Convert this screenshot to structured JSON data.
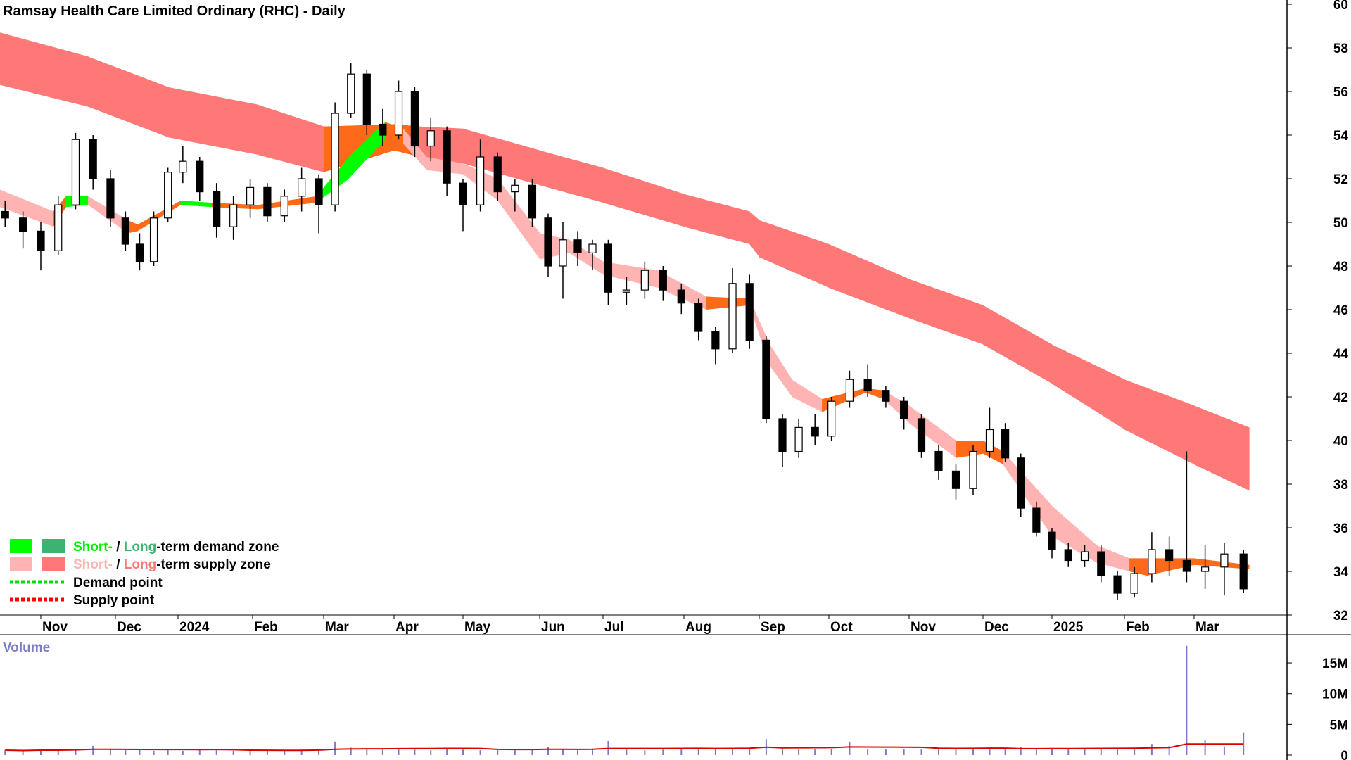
{
  "title": "Ramsay Health Care Limited Ordinary (RHC) - Daily",
  "colors": {
    "short_demand": "#00ff00",
    "long_demand": "#3cb371",
    "short_supply": "#ffb3b3",
    "long_supply": "#ff7878",
    "in_zone": "#ff6a1a",
    "demand_point": "#00dd00",
    "supply_point": "#ff0000",
    "volume_bar": "#7b7bc8",
    "volume_ma": "#dd0000"
  },
  "legend": {
    "demand": {
      "short": "Short-",
      "sep": " / ",
      "long": "Long",
      "rest": "-term demand zone"
    },
    "supply": {
      "short": "Short-",
      "sep": " / ",
      "long": "Long",
      "rest": "-term supply zone"
    },
    "demand_point": "Demand point",
    "supply_point": "Supply point"
  },
  "chart_data": [
    {
      "type": "candlestick",
      "title": "Ramsay Health Care Limited Ordinary (RHC) - Daily",
      "ylim": [
        32,
        60
      ],
      "y_ticks": [
        "60",
        "58",
        "56",
        "54",
        "52",
        "50",
        "48",
        "46",
        "44",
        "42",
        "40",
        "38",
        "36",
        "34",
        "32"
      ],
      "x_ticks": [
        {
          "label": "Nov",
          "date": "2023-11-01"
        },
        {
          "label": "Dec",
          "date": "2023-12-01"
        },
        {
          "label": "2024",
          "date": "2024-01-01"
        },
        {
          "label": "Feb",
          "date": "2024-02-01"
        },
        {
          "label": "Mar",
          "date": "2024-03-01"
        },
        {
          "label": "Apr",
          "date": "2024-04-01"
        },
        {
          "label": "May",
          "date": "2024-05-01"
        },
        {
          "label": "Jun",
          "date": "2024-06-01"
        },
        {
          "label": "Jul",
          "date": "2024-07-01"
        },
        {
          "label": "Aug",
          "date": "2024-08-01"
        },
        {
          "label": "Sep",
          "date": "2024-09-01"
        },
        {
          "label": "Oct",
          "date": "2024-10-01"
        },
        {
          "label": "Nov",
          "date": "2024-11-01"
        },
        {
          "label": "Dec",
          "date": "2024-12-01"
        },
        {
          "label": "2025",
          "date": "2025-01-01"
        },
        {
          "label": "Feb",
          "date": "2025-02-01"
        },
        {
          "label": "Mar",
          "date": "2025-03-01"
        }
      ],
      "ohlc_columns": [
        "date",
        "open",
        "high",
        "low",
        "close"
      ],
      "ohlc": [
        [
          "2023-10-18",
          50.5,
          51.0,
          49.8,
          50.2
        ],
        [
          "2023-10-25",
          50.2,
          50.5,
          48.8,
          49.6
        ],
        [
          "2023-11-01",
          49.6,
          50.0,
          47.8,
          48.7
        ],
        [
          "2023-11-08",
          48.7,
          51.2,
          48.5,
          50.8
        ],
        [
          "2023-11-15",
          50.8,
          54.1,
          50.6,
          53.8
        ],
        [
          "2023-11-22",
          53.8,
          54.0,
          51.5,
          52.0
        ],
        [
          "2023-11-29",
          52.0,
          52.4,
          49.8,
          50.2
        ],
        [
          "2023-12-06",
          50.2,
          50.5,
          48.7,
          49.0
        ],
        [
          "2023-12-13",
          49.0,
          49.5,
          47.8,
          48.2
        ],
        [
          "2023-12-20",
          48.2,
          50.5,
          48.0,
          50.2
        ],
        [
          "2023-12-27",
          50.2,
          52.5,
          50.0,
          52.3
        ],
        [
          "2024-01-03",
          52.3,
          53.5,
          51.8,
          52.8
        ],
        [
          "2024-01-10",
          52.8,
          53.0,
          51.0,
          51.4
        ],
        [
          "2024-01-17",
          51.4,
          51.8,
          49.3,
          49.8
        ],
        [
          "2024-01-24",
          49.8,
          51.2,
          49.2,
          50.8
        ],
        [
          "2024-01-31",
          50.8,
          52.0,
          50.2,
          51.6
        ],
        [
          "2024-02-07",
          51.6,
          51.8,
          50.0,
          50.3
        ],
        [
          "2024-02-14",
          50.3,
          51.5,
          50.0,
          51.2
        ],
        [
          "2024-02-21",
          51.2,
          52.5,
          50.5,
          52.0
        ],
        [
          "2024-02-28",
          52.0,
          52.2,
          49.5,
          50.8
        ],
        [
          "2024-03-06",
          50.8,
          55.5,
          50.5,
          55.0
        ],
        [
          "2024-03-13",
          55.0,
          57.3,
          54.8,
          56.8
        ],
        [
          "2024-03-20",
          56.8,
          57.0,
          54.0,
          54.5
        ],
        [
          "2024-03-27",
          54.5,
          55.2,
          53.5,
          54.0
        ],
        [
          "2024-04-03",
          54.0,
          56.5,
          53.8,
          56.0
        ],
        [
          "2024-04-10",
          56.0,
          56.2,
          53.0,
          53.5
        ],
        [
          "2024-04-17",
          53.5,
          54.8,
          52.8,
          54.2
        ],
        [
          "2024-04-24",
          54.2,
          54.4,
          51.2,
          51.8
        ],
        [
          "2024-05-01",
          51.8,
          52.0,
          49.6,
          50.8
        ],
        [
          "2024-05-08",
          50.8,
          53.8,
          50.5,
          53.0
        ],
        [
          "2024-05-15",
          53.0,
          53.2,
          51.0,
          51.4
        ],
        [
          "2024-05-22",
          51.4,
          52.0,
          50.5,
          51.7
        ],
        [
          "2024-05-29",
          51.7,
          52.0,
          49.8,
          50.2
        ],
        [
          "2024-06-05",
          50.2,
          50.4,
          47.5,
          48.0
        ],
        [
          "2024-06-12",
          48.0,
          50.0,
          46.5,
          49.2
        ],
        [
          "2024-06-19",
          49.2,
          49.6,
          48.0,
          48.6
        ],
        [
          "2024-06-26",
          48.6,
          49.2,
          47.8,
          49.0
        ],
        [
          "2024-07-03",
          49.0,
          49.2,
          46.2,
          46.8
        ],
        [
          "2024-07-10",
          46.8,
          47.5,
          46.2,
          46.9
        ],
        [
          "2024-07-17",
          46.9,
          48.2,
          46.5,
          47.8
        ],
        [
          "2024-07-24",
          47.8,
          48.0,
          46.4,
          46.9
        ],
        [
          "2024-07-31",
          46.9,
          47.2,
          45.8,
          46.3
        ],
        [
          "2024-08-07",
          46.3,
          46.5,
          44.6,
          45.0
        ],
        [
          "2024-08-14",
          45.0,
          45.2,
          43.5,
          44.2
        ],
        [
          "2024-08-21",
          44.2,
          47.9,
          44.0,
          47.2
        ],
        [
          "2024-08-28",
          47.2,
          47.6,
          44.2,
          44.6
        ],
        [
          "2024-09-04",
          44.6,
          44.8,
          40.8,
          41.0
        ],
        [
          "2024-09-11",
          41.0,
          41.2,
          38.8,
          39.5
        ],
        [
          "2024-09-18",
          39.5,
          41.0,
          39.2,
          40.6
        ],
        [
          "2024-09-25",
          40.6,
          41.2,
          39.8,
          40.2
        ],
        [
          "2024-10-02",
          40.2,
          42.0,
          40.0,
          41.8
        ],
        [
          "2024-10-09",
          41.8,
          43.2,
          41.5,
          42.8
        ],
        [
          "2024-10-16",
          42.8,
          43.5,
          42.0,
          42.3
        ],
        [
          "2024-10-23",
          42.3,
          42.5,
          41.5,
          41.8
        ],
        [
          "2024-10-30",
          41.8,
          42.0,
          40.5,
          41.0
        ],
        [
          "2024-11-06",
          41.0,
          41.2,
          39.2,
          39.5
        ],
        [
          "2024-11-13",
          39.5,
          39.8,
          38.2,
          38.6
        ],
        [
          "2024-11-20",
          38.6,
          38.9,
          37.3,
          37.8
        ],
        [
          "2024-11-27",
          37.8,
          39.8,
          37.5,
          39.5
        ],
        [
          "2024-12-04",
          39.5,
          41.5,
          39.2,
          40.5
        ],
        [
          "2024-12-11",
          40.5,
          40.8,
          39.0,
          39.2
        ],
        [
          "2024-12-18",
          39.2,
          39.4,
          36.5,
          36.9
        ],
        [
          "2024-12-25",
          36.9,
          37.2,
          35.6,
          35.8
        ],
        [
          "2025-01-01",
          35.8,
          36.0,
          34.6,
          35.0
        ],
        [
          "2025-01-08",
          35.0,
          35.3,
          34.2,
          34.5
        ],
        [
          "2025-01-15",
          34.5,
          35.2,
          34.2,
          34.9
        ],
        [
          "2025-01-22",
          34.9,
          35.2,
          33.5,
          33.8
        ],
        [
          "2025-01-29",
          33.8,
          34.0,
          32.7,
          33.0
        ],
        [
          "2025-02-05",
          33.0,
          34.2,
          32.8,
          33.9
        ],
        [
          "2025-02-12",
          33.9,
          35.8,
          33.5,
          35.0
        ],
        [
          "2025-02-19",
          35.0,
          35.6,
          33.8,
          34.5
        ],
        [
          "2025-02-26",
          34.5,
          39.5,
          33.5,
          34.0
        ],
        [
          "2025-03-05",
          34.0,
          35.2,
          33.2,
          34.2
        ],
        [
          "2025-03-12",
          34.2,
          35.3,
          32.9,
          34.8
        ],
        [
          "2025-03-19",
          34.8,
          35.0,
          33.0,
          33.2
        ]
      ],
      "long_term_zone_columns": [
        "date",
        "upper",
        "lower",
        "state"
      ],
      "long_term_zone": [
        [
          "2023-10-16",
          58.7,
          56.3,
          "supply"
        ],
        [
          "2023-11-20",
          57.6,
          55.3,
          "supply"
        ],
        [
          "2023-12-27",
          56.2,
          53.9,
          "supply"
        ],
        [
          "2024-02-03",
          55.4,
          53.1,
          "supply"
        ],
        [
          "2024-03-01",
          54.4,
          52.3,
          "in_zone"
        ],
        [
          "2024-04-01",
          54.5,
          53.3,
          "in_zone"
        ],
        [
          "2024-04-12",
          54.4,
          53.0,
          "supply"
        ],
        [
          "2024-05-01",
          54.3,
          52.7,
          "supply"
        ],
        [
          "2024-06-01",
          53.3,
          51.7,
          "supply"
        ],
        [
          "2024-07-01",
          52.5,
          50.9,
          "supply"
        ],
        [
          "2024-08-01",
          51.3,
          49.8,
          "supply"
        ],
        [
          "2024-08-28",
          50.5,
          49.0,
          "supply"
        ],
        [
          "2024-09-01",
          50.1,
          48.4,
          "supply"
        ],
        [
          "2024-10-01",
          49.0,
          47.0,
          "supply"
        ],
        [
          "2024-11-01",
          47.4,
          45.6,
          "supply"
        ],
        [
          "2024-12-01",
          46.2,
          44.4,
          "supply"
        ],
        [
          "2025-01-01",
          44.4,
          42.6,
          "supply"
        ],
        [
          "2025-02-01",
          42.8,
          40.5,
          "supply"
        ],
        [
          "2025-03-01",
          41.6,
          38.9,
          "supply"
        ],
        [
          "2025-03-21",
          40.6,
          37.7,
          "supply"
        ]
      ],
      "short_term_zone_columns": [
        "date",
        "upper",
        "lower",
        "state"
      ],
      "short_term_zone": [
        [
          "2023-10-16",
          51.5,
          50.7,
          "supply"
        ],
        [
          "2023-11-06",
          50.5,
          49.8,
          "in_zone"
        ],
        [
          "2023-11-11",
          51.2,
          50.7,
          "demand"
        ],
        [
          "2023-11-20",
          51.2,
          50.8,
          "supply"
        ],
        [
          "2023-12-07",
          50.1,
          49.5,
          "in_zone"
        ],
        [
          "2023-12-12",
          49.9,
          49.6,
          "in_zone"
        ],
        [
          "2024-01-02",
          51.0,
          50.8,
          "demand"
        ],
        [
          "2024-01-15",
          50.9,
          50.7,
          "in_zone"
        ],
        [
          "2024-02-03",
          50.8,
          50.6,
          "in_zone"
        ],
        [
          "2024-02-27",
          51.2,
          50.9,
          "demand"
        ],
        [
          "2024-03-12",
          53.0,
          52.0,
          "demand"
        ],
        [
          "2024-03-28",
          54.6,
          53.8,
          "in_zone"
        ],
        [
          "2024-04-05",
          54.3,
          53.6,
          "supply"
        ],
        [
          "2024-04-15",
          53.0,
          52.4,
          "supply"
        ],
        [
          "2024-05-01",
          52.7,
          52.2,
          "supply"
        ],
        [
          "2024-05-15",
          52.0,
          51.0,
          "supply"
        ],
        [
          "2024-06-01",
          49.5,
          48.3,
          "supply"
        ],
        [
          "2024-06-15",
          49.2,
          48.6,
          "supply"
        ],
        [
          "2024-07-01",
          48.2,
          47.6,
          "supply"
        ],
        [
          "2024-07-22",
          47.8,
          47.0,
          "supply"
        ],
        [
          "2024-08-10",
          46.6,
          46.0,
          "in_zone"
        ],
        [
          "2024-08-28",
          46.5,
          46.2,
          "supply"
        ],
        [
          "2024-09-05",
          44.5,
          43.5,
          "supply"
        ],
        [
          "2024-09-15",
          42.8,
          42.0,
          "supply"
        ],
        [
          "2024-09-28",
          41.9,
          41.3,
          "in_zone"
        ],
        [
          "2024-10-15",
          42.4,
          42.2,
          "in_zone"
        ],
        [
          "2024-10-22",
          42.3,
          41.9,
          "supply"
        ],
        [
          "2024-11-01",
          41.6,
          40.8,
          "supply"
        ],
        [
          "2024-11-20",
          40.0,
          39.2,
          "in_zone"
        ],
        [
          "2024-12-01",
          40.0,
          39.4,
          "in_zone"
        ],
        [
          "2024-12-10",
          39.5,
          38.9,
          "supply"
        ],
        [
          "2025-01-01",
          37.0,
          35.6,
          "supply"
        ],
        [
          "2025-01-20",
          35.2,
          34.4,
          "supply"
        ],
        [
          "2025-02-03",
          34.6,
          34.0,
          "in_zone"
        ],
        [
          "2025-02-10",
          34.6,
          33.8,
          "in_zone"
        ],
        [
          "2025-03-01",
          34.6,
          34.3,
          "in_zone"
        ],
        [
          "2025-03-21",
          34.3,
          34.1,
          "in_zone"
        ]
      ]
    },
    {
      "type": "bar",
      "title": "Volume",
      "y_ticks": [
        "15M",
        "10M",
        "5M",
        "0"
      ],
      "ylim": [
        0,
        18
      ],
      "unit": "M",
      "values_millions": [
        0.8,
        0.7,
        0.9,
        0.8,
        1.0,
        1.5,
        0.9,
        0.8,
        0.9,
        0.7,
        0.8,
        0.7,
        0.8,
        0.9,
        0.7,
        0.8,
        0.8,
        0.7,
        0.9,
        1.0,
        2.2,
        1.2,
        1.0,
        0.9,
        1.0,
        0.9,
        0.8,
        1.0,
        0.9,
        0.8,
        0.8,
        0.9,
        1.0,
        1.3,
        1.0,
        0.8,
        0.9,
        2.3,
        0.9,
        0.8,
        0.9,
        1.0,
        1.1,
        1.0,
        1.2,
        1.1,
        2.6,
        1.2,
        1.0,
        0.9,
        1.0,
        2.2,
        1.0,
        0.9,
        1.0,
        0.9,
        1.0,
        1.0,
        1.1,
        1.2,
        1.0,
        1.3,
        1.1,
        1.0,
        1.0,
        1.0,
        1.2,
        1.1,
        1.2,
        1.8,
        1.5,
        17.8,
        2.5,
        1.4,
        3.7
      ]
    }
  ]
}
